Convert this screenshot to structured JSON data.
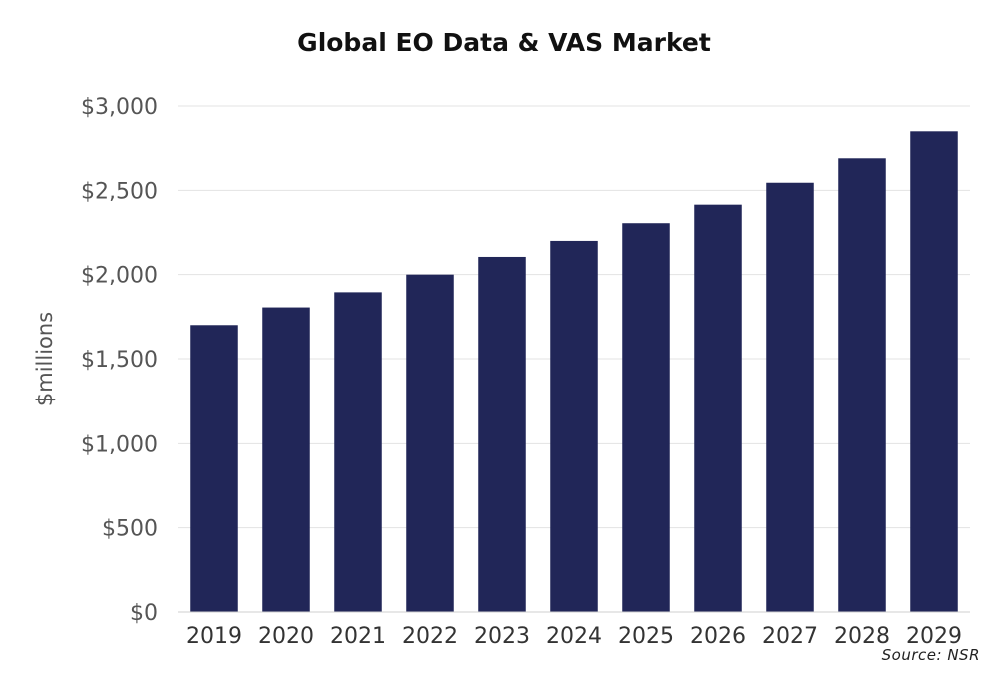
{
  "chart_data": {
    "type": "bar",
    "title": "Global EO Data & VAS Market",
    "xlabel": "",
    "ylabel": "$millions",
    "categories": [
      "2019",
      "2020",
      "2021",
      "2022",
      "2023",
      "2024",
      "2025",
      "2026",
      "2027",
      "2028",
      "2029"
    ],
    "values": [
      1700,
      1805,
      1895,
      2000,
      2105,
      2200,
      2305,
      2415,
      2545,
      2690,
      2850
    ],
    "ylim": [
      0,
      3000
    ],
    "yticks": [
      0,
      500,
      1000,
      1500,
      2000,
      2500,
      3000
    ],
    "ytick_labels": [
      "$0",
      "$500",
      "$1,000",
      "$1,500",
      "$2,000",
      "$2,500",
      "$3,000"
    ],
    "grid": true,
    "legend": "none",
    "bar_color": "#212658",
    "source": "Source: NSR"
  }
}
